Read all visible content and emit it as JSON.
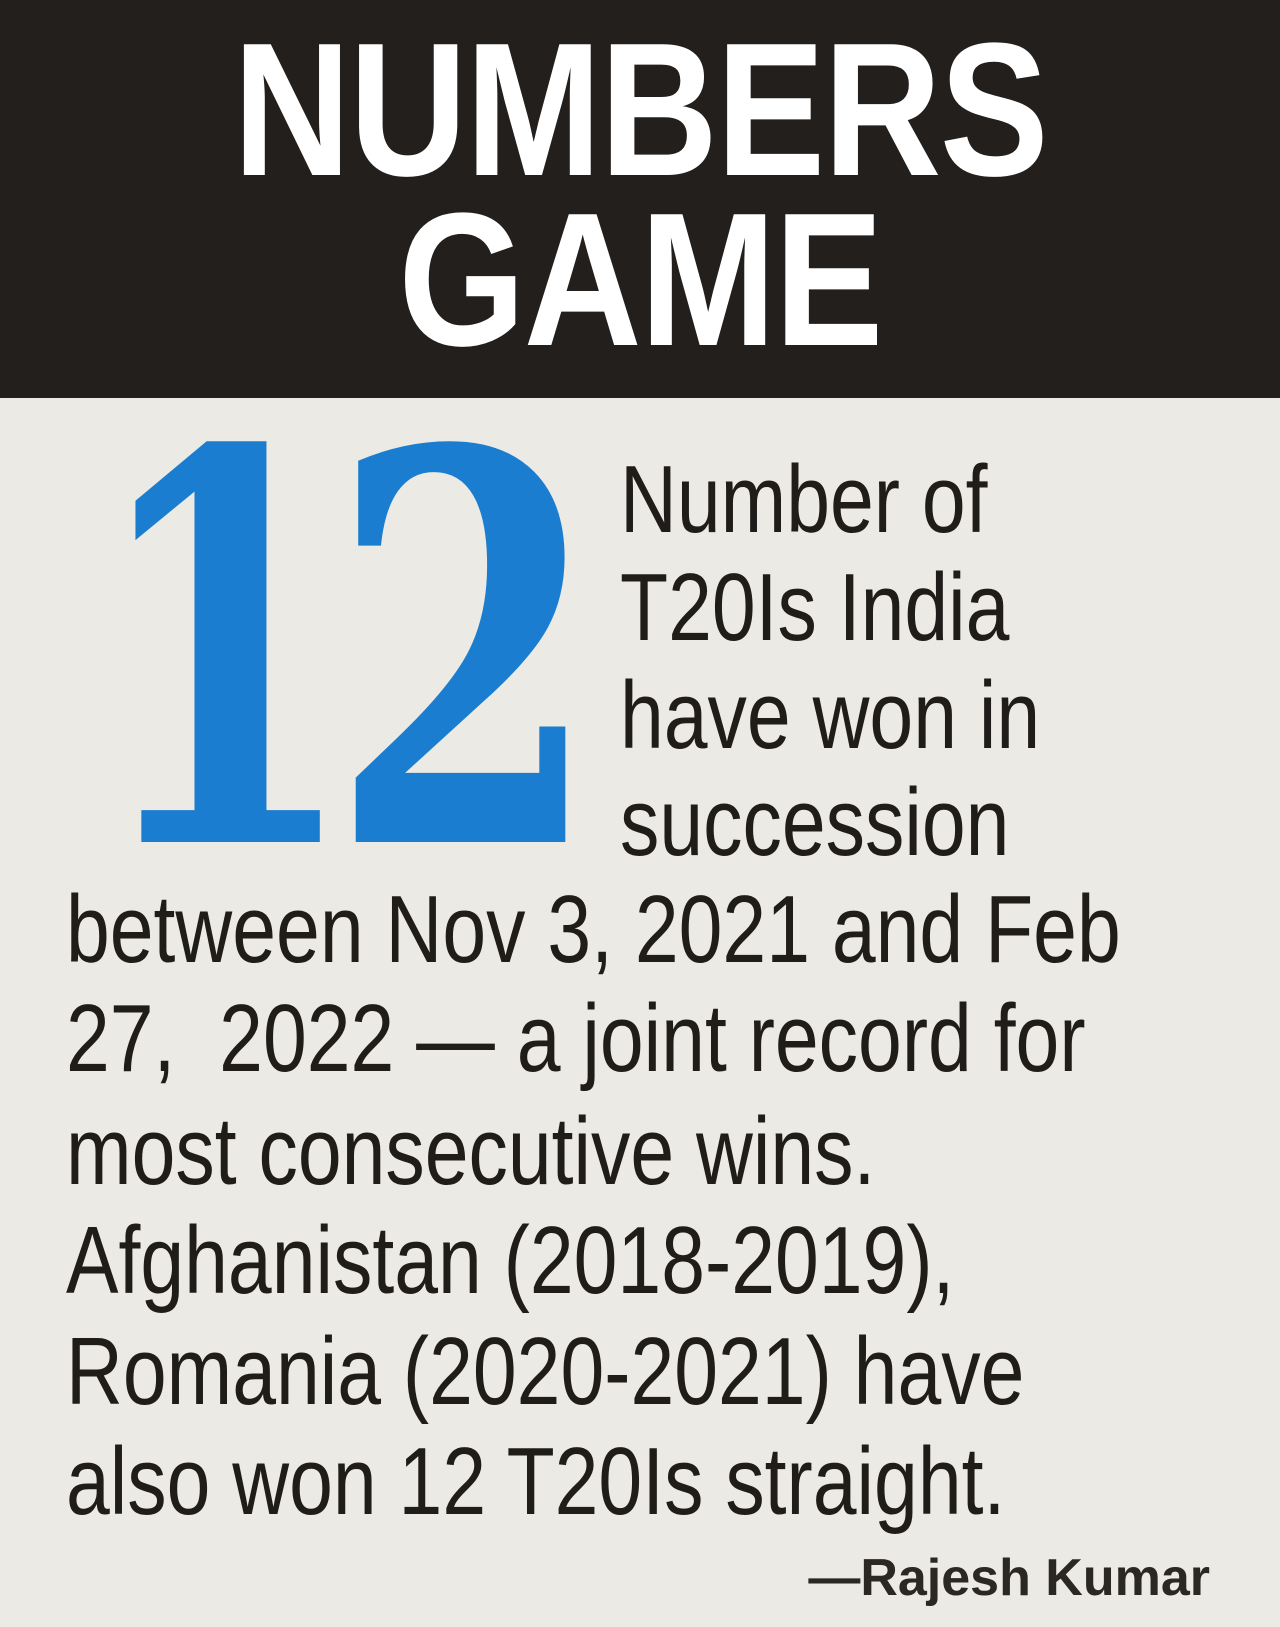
{
  "header": {
    "title_line1": "NUMBERS",
    "title_line2": "GAME"
  },
  "stat": {
    "number": "12",
    "color": "#1a7dd0",
    "side_lines": [
      "Number of",
      "T20Is India",
      "have won in",
      "succession"
    ],
    "body_lines": [
      "between Nov 3, 2021 and Feb",
      "27,  2022 — a joint record for",
      "most consecutive wins.",
      "Afghanistan (2018-2019),",
      "Romania (2020-2021) have",
      "also won 12 T20Is straight."
    ]
  },
  "byline": "—Rajesh Kumar"
}
